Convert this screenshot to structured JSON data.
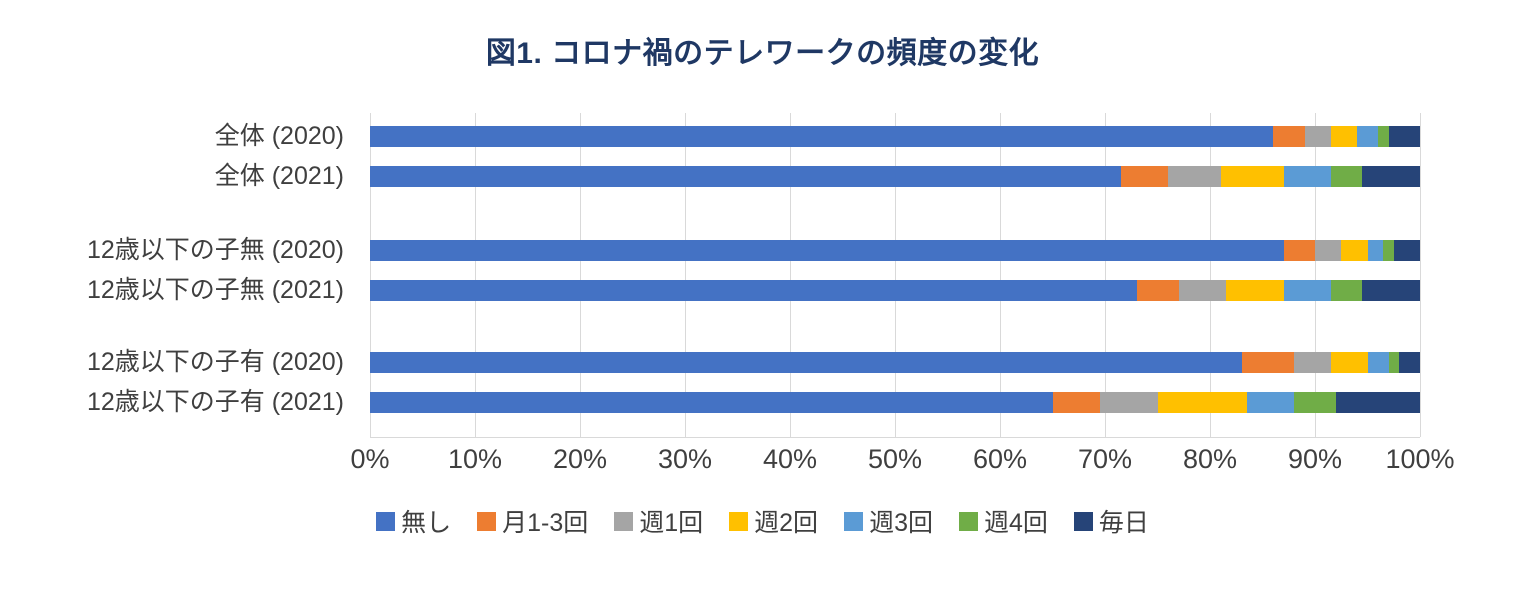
{
  "title": "図1. コロナ禍のテレワークの頻度の変化",
  "chart_data": {
    "type": "bar",
    "subtype": "horizontal-stacked-100",
    "title": "図1. コロナ禍のテレワークの頻度の変化",
    "categories": [
      "全体 (2020)",
      "全体 (2021)",
      "12歳以下の子無 (2020)",
      "12歳以下の子無 (2021)",
      "12歳以下の子有 (2020)",
      "12歳以下の子有 (2021)"
    ],
    "series": [
      {
        "name": "無し",
        "color": "#4472C4",
        "values": [
          86,
          71.5,
          87,
          73,
          83,
          65
        ]
      },
      {
        "name": "月1-3回",
        "color": "#ED7D31",
        "values": [
          3,
          4.5,
          3,
          4,
          5,
          4.5
        ]
      },
      {
        "name": "週1回",
        "color": "#A5A5A5",
        "values": [
          2.5,
          5,
          2.5,
          4.5,
          3.5,
          5.5
        ]
      },
      {
        "name": "週2回",
        "color": "#FFC000",
        "values": [
          2.5,
          6,
          2.5,
          5.5,
          3.5,
          8.5
        ]
      },
      {
        "name": "週3回",
        "color": "#5B9BD5",
        "values": [
          2,
          4.5,
          1.5,
          4.5,
          2,
          4.5
        ]
      },
      {
        "name": "週4回",
        "color": "#70AD47",
        "values": [
          1,
          3,
          1,
          3,
          1,
          4
        ]
      },
      {
        "name": "毎日",
        "color": "#264478",
        "values": [
          3,
          5.5,
          2.5,
          5.5,
          2,
          8
        ]
      }
    ],
    "x_ticks": [
      "0%",
      "10%",
      "20%",
      "30%",
      "40%",
      "50%",
      "60%",
      "70%",
      "80%",
      "90%",
      "100%"
    ],
    "xlim": [
      0,
      100
    ],
    "grid": true,
    "legend_position": "bottom"
  }
}
